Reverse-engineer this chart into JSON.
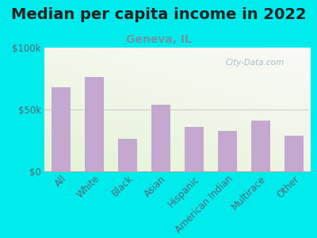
{
  "title": "Median per capita income in 2022",
  "subtitle": "Geneva, IL",
  "categories": [
    "All",
    "White",
    "Black",
    "Asian",
    "Hispanic",
    "American Indian",
    "Multirace",
    "Other"
  ],
  "values": [
    68000,
    76000,
    26000,
    54000,
    36000,
    33000,
    41000,
    29000
  ],
  "bar_color": "#c4a8d0",
  "background_outer": "#00ecec",
  "title_color": "#222222",
  "subtitle_color": "#6699aa",
  "tick_color": "#556677",
  "watermark": "City-Data.com",
  "ylim": [
    0,
    100000
  ],
  "yticks": [
    0,
    50000,
    100000
  ],
  "ytick_labels": [
    "$0",
    "$50k",
    "$100k"
  ],
  "title_fontsize": 14,
  "subtitle_fontsize": 10,
  "tick_fontsize": 8.5
}
